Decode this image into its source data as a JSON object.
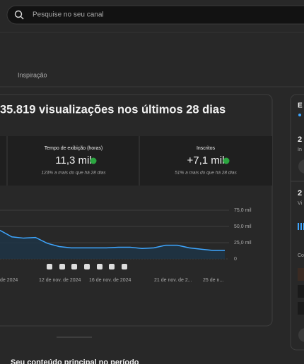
{
  "search_placeholder": "Pesquise no seu canal",
  "tab": "Inspiração",
  "headline": "35.819 visualizações nos últimos 28 dias",
  "metrics": [
    {
      "label": "Tempo de exibição (horas)",
      "value": "11,3 mil",
      "change": "123% a mais do que há 28 dias"
    },
    {
      "label": "Inscritos",
      "value": "+7,1 mil",
      "change": "51% a mais do que há 28 dias"
    }
  ],
  "chart": {
    "type": "line",
    "color": "#3ea6ff",
    "values": [
      44000,
      34000,
      32000,
      33000,
      24000,
      19000,
      17000,
      17000,
      17000,
      17000,
      18000,
      18000,
      16000,
      17000,
      21000,
      21000,
      17000,
      15000,
      13000,
      13000
    ],
    "ylim": [
      0,
      75000
    ],
    "yticks": [
      0,
      {
        "value": 25000,
        "label": "25,0 mil"
      },
      {
        "value": 50000,
        "label": "50,0 mil"
      },
      {
        "value": 75000,
        "label": "75,0 mil"
      }
    ],
    "xlabels": [
      "de 2024",
      "12 de nov. de 2024",
      "16 de nov. de 2024",
      "21 de nov. de 2...",
      "25 de n..."
    ]
  },
  "section_title": "Seu conteúdo principal no período",
  "side": {
    "title": "E",
    "stat1": "2",
    "stat1_label": "In",
    "stat2": "2",
    "stat2_label": "Vi",
    "list_label": "Co"
  }
}
